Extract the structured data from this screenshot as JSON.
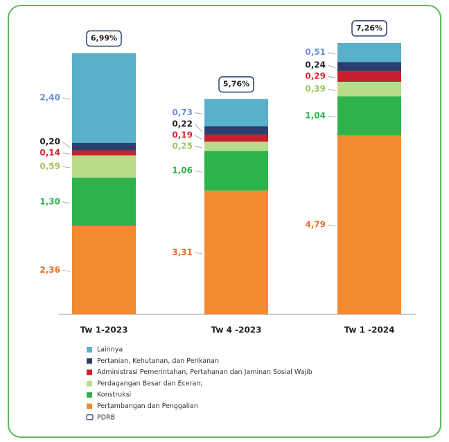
{
  "chart_data": {
    "type": "bar",
    "stacked": true,
    "categories": [
      "Tw 1-2023",
      "Tw 4 -2023",
      "Tw 1 -2024"
    ],
    "ylim": [
      0,
      7.5
    ],
    "series": [
      {
        "name": "Pertambangan dan Penggalian",
        "color": "#f28a30",
        "label_color": "#e8702a",
        "values": [
          2.36,
          3.31,
          4.79
        ],
        "value_labels": [
          "2,36",
          "3,31",
          "4,79"
        ]
      },
      {
        "name": "Konstruksi",
        "color": "#2db34a",
        "label_color": "#2db34a",
        "values": [
          1.3,
          1.06,
          1.04
        ],
        "value_labels": [
          "1,30",
          "1,06",
          "1,04"
        ]
      },
      {
        "name": "Perdagangan Besar dan Eceran;",
        "color": "#b8dc8a",
        "label_color": "#a2c762",
        "values": [
          0.59,
          0.25,
          0.39
        ],
        "value_labels": [
          "0,59",
          "0,25",
          "0,39"
        ]
      },
      {
        "name": "Administrasi Pemerintahan, Pertahanan dan Jaminan Sosial Wajib",
        "color": "#c8202e",
        "label_color": "#d6232f",
        "values": [
          0.14,
          0.19,
          0.29
        ],
        "value_labels": [
          "0,14",
          "0,19",
          "0,29"
        ]
      },
      {
        "name": "Pertanian, Kehutanan, dan Perikanan",
        "color": "#2c3e6e",
        "label_color": "#222222",
        "values": [
          0.2,
          0.22,
          0.24
        ],
        "value_labels": [
          "0,20",
          "0,22",
          "0,24"
        ]
      },
      {
        "name": "Lainnya",
        "color": "#5ab0c8",
        "label_color": "#6a8fd6",
        "values": [
          2.4,
          0.73,
          0.51
        ],
        "value_labels": [
          "2,40",
          "0,73",
          "0,51"
        ]
      }
    ],
    "totals": {
      "name": "PDRB",
      "color": "#2c3e6e",
      "values": [
        6.99,
        5.76,
        7.26
      ],
      "value_labels": [
        "6,99%",
        "5,76%",
        "7,26%"
      ]
    }
  }
}
